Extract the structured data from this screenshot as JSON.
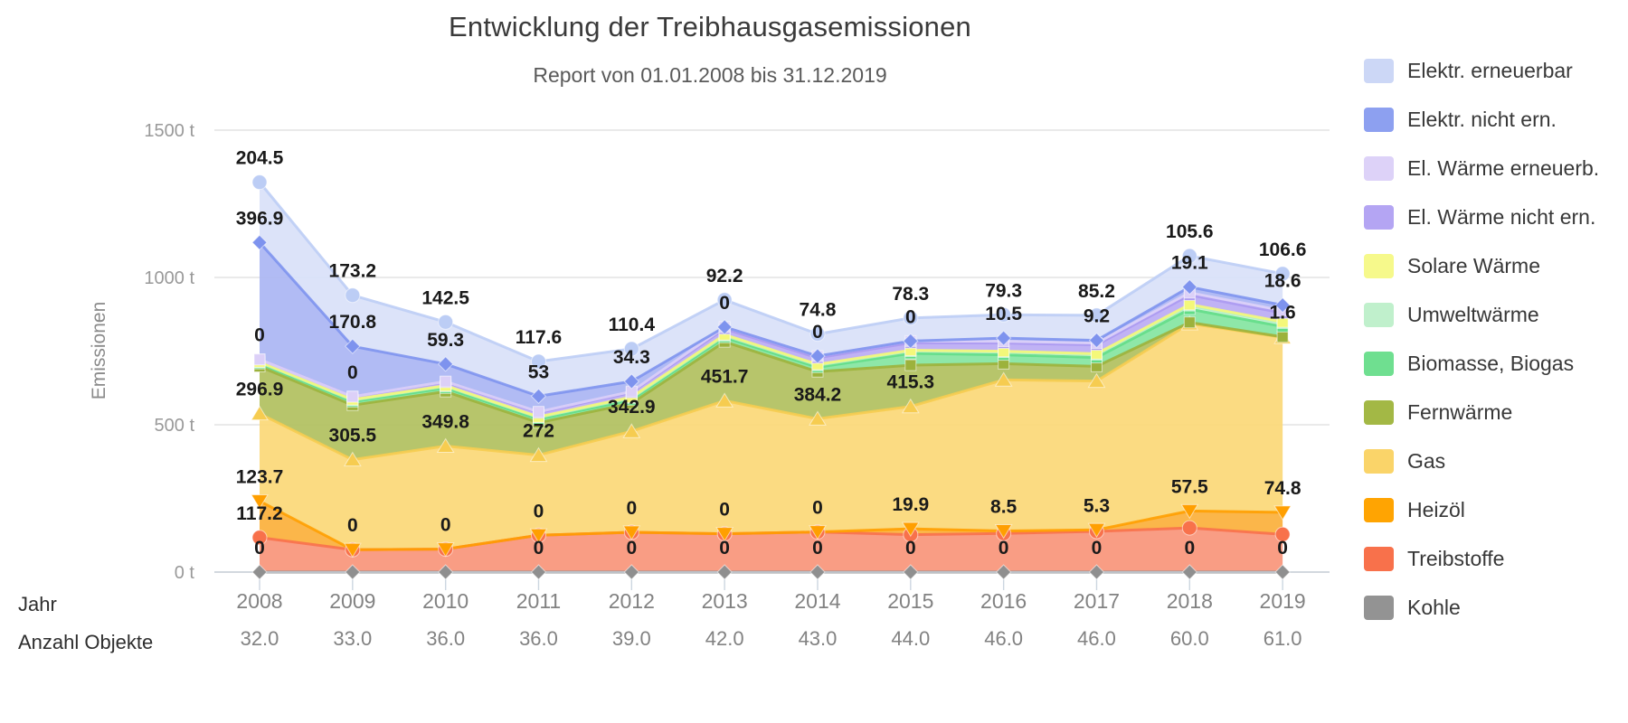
{
  "title": "Entwicklung der Treibhausgasemissionen",
  "subtitle": "Report von 01.01.2008 bis 31.12.2019",
  "axis": {
    "y_title": "Emissionen",
    "x_row1_label": "Jahr",
    "x_row2_label": "Anzahl Objekte"
  },
  "legend": {
    "items": [
      {
        "key": "elektr_e",
        "label": "Elektr. erneuerbar",
        "color": "#ccd7f6"
      },
      {
        "key": "elektr_ne",
        "label": "Elektr. nicht ern.",
        "color": "#8da0f0"
      },
      {
        "key": "elw_e",
        "label": "El. Wärme erneuerb.",
        "color": "#ddd2f8"
      },
      {
        "key": "elw_ne",
        "label": "El. Wärme nicht ern.",
        "color": "#b4a5f3"
      },
      {
        "key": "solare",
        "label": "Solare Wärme",
        "color": "#f6f98b"
      },
      {
        "key": "umweltwaerme",
        "label": "Umweltwärme",
        "color": "#c0f0cc"
      },
      {
        "key": "biomasse",
        "label": "Biomasse, Biogas",
        "color": "#6fdf90"
      },
      {
        "key": "fernwaerme",
        "label": "Fernwärme",
        "color": "#a3b845"
      },
      {
        "key": "gas",
        "label": "Gas",
        "color": "#fad469"
      },
      {
        "key": "heizoel",
        "label": "Heizöl",
        "color": "#ffa402"
      },
      {
        "key": "treibstoffe",
        "label": "Treibstoffe",
        "color": "#f8714b"
      },
      {
        "key": "kohle",
        "label": "Kohle",
        "color": "#939393"
      }
    ]
  },
  "chart_data": {
    "type": "area",
    "stacking": "normal",
    "grid": true,
    "legend_position": "right",
    "y_unit": "t",
    "ylim": [
      0,
      1500
    ],
    "y_ticks": [
      {
        "value": 0,
        "label": "0 t"
      },
      {
        "value": 500,
        "label": "500 t"
      },
      {
        "value": 1000,
        "label": "1000 t"
      },
      {
        "value": 1500,
        "label": "1500 t"
      }
    ],
    "x": [
      2008,
      2009,
      2010,
      2011,
      2012,
      2013,
      2014,
      2015,
      2016,
      2017,
      2018,
      2019
    ],
    "anzahl_objekte": [
      "32.0",
      "33.0",
      "36.0",
      "36.0",
      "39.0",
      "42.0",
      "43.0",
      "44.0",
      "46.0",
      "46.0",
      "60.0",
      "61.0"
    ],
    "series_note": "Series listed bottom-to-top of the stack. Values backing a visible point label are exact; all other values are visual estimates read from the pixel geometry.",
    "series": [
      {
        "key": "kohle",
        "name": "Kohle",
        "color": "#8f8f8f",
        "area_color": "#a8a8a8",
        "marker": "diamond",
        "values": [
          0,
          0,
          0,
          0,
          0,
          0,
          0,
          0,
          0,
          0,
          0,
          0
        ]
      },
      {
        "key": "treibstoffe",
        "name": "Treibstoffe",
        "color": "#f8714b",
        "area_color": "#f9967b",
        "marker": "circle",
        "values": [
          117.2,
          76,
          78,
          125,
          135,
          130,
          136,
          127,
          131,
          138,
          150,
          128
        ]
      },
      {
        "key": "heizoel",
        "name": "Heizöl",
        "color": "#ff9f00",
        "area_color": "#fbb03c",
        "marker": "triangle-down",
        "values": [
          123.7,
          0,
          0,
          0,
          0,
          0,
          0,
          19.9,
          8.5,
          5.3,
          57.5,
          74.8
        ]
      },
      {
        "key": "gas",
        "name": "Gas",
        "color": "#f6cc50",
        "area_color": "#fbd878",
        "marker": "triangle-up",
        "values": [
          296.9,
          305.5,
          349.8,
          272,
          342.9,
          451.7,
          384.2,
          415.3,
          513,
          505,
          636,
          594
        ]
      },
      {
        "key": "fernwaerme",
        "name": "Fernwärme",
        "color": "#9cb23c",
        "area_color": "#b2c160",
        "marker": "square",
        "values": [
          160,
          185,
          185,
          110,
          95,
          200,
          160,
          140,
          55,
          50,
          4,
          1.6
        ]
      },
      {
        "key": "biomasse",
        "name": "Biomasse, Biogas",
        "color": "#62dd87",
        "area_color": "#85e5a1",
        "marker": "square",
        "values": [
          10,
          12,
          12,
          12,
          12,
          15,
          15,
          40,
          30,
          30,
          45,
          35
        ]
      },
      {
        "key": "umweltwaerme",
        "name": "Umweltwärme",
        "color": "#b5efc4",
        "area_color": "#c9f2d3",
        "marker": "square",
        "values": [
          4,
          5,
          6,
          6,
          6,
          6,
          7,
          8,
          9,
          10,
          12,
          12
        ]
      },
      {
        "key": "solare",
        "name": "Solare Wärme",
        "color": "#f4f87a",
        "area_color": "#f7f9a8",
        "marker": "square",
        "values": [
          2,
          2,
          2,
          2,
          3,
          3,
          3,
          3,
          3,
          3,
          4,
          4
        ]
      },
      {
        "key": "elw_ne",
        "name": "El. Wärme nicht ern.",
        "color": "#ab99f1",
        "area_color": "#bbacf4",
        "marker": "square",
        "values": [
          8,
          10,
          12,
          14,
          16,
          20,
          22,
          25,
          28,
          30,
          32,
          30
        ]
      },
      {
        "key": "elw_e",
        "name": "El. Wärme erneuerb.",
        "color": "#dcd0f8",
        "area_color": "#ded3f9",
        "marker": "square",
        "values": [
          0,
          0,
          2,
          3,
          3,
          6,
          6,
          6,
          6,
          6,
          8,
          8
        ]
      },
      {
        "key": "elektr_ne",
        "name": "Elektr. nicht ern.",
        "color": "#7e93ee",
        "area_color": "#abb6f3",
        "marker": "diamond",
        "values": [
          396.9,
          170.8,
          59.3,
          53,
          34.3,
          0,
          0,
          0,
          10.5,
          9.2,
          19.1,
          18.6
        ]
      },
      {
        "key": "elektr_e",
        "name": "Elektr. erneuerbar",
        "color": "#bccdf5",
        "area_color": "#d9e1f9",
        "marker": "circle",
        "values": [
          204.5,
          173.2,
          142.5,
          117.6,
          110.4,
          92.2,
          74.8,
          78.3,
          79.3,
          85.2,
          105.6,
          106.6
        ]
      }
    ],
    "point_labels": [
      {
        "year": 2008,
        "series": "elektr_e",
        "text": "204.5"
      },
      {
        "year": 2008,
        "series": "elektr_ne",
        "text": "396.9"
      },
      {
        "year": 2008,
        "series": "elw_e",
        "text": "0"
      },
      {
        "year": 2008,
        "series": "gas",
        "text": "296.9"
      },
      {
        "year": 2008,
        "series": "heizoel",
        "text": "123.7"
      },
      {
        "year": 2008,
        "series": "treibstoffe",
        "text": "117.2"
      },
      {
        "year": 2008,
        "series": "kohle",
        "text": "0"
      },
      {
        "year": 2009,
        "series": "elektr_e",
        "text": "173.2"
      },
      {
        "year": 2009,
        "series": "elektr_ne",
        "text": "170.8"
      },
      {
        "year": 2009,
        "series": "elw_e",
        "text": "0"
      },
      {
        "year": 2009,
        "series": "gas",
        "text": "305.5"
      },
      {
        "year": 2009,
        "series": "heizoel",
        "text": "0"
      },
      {
        "year": 2010,
        "series": "elektr_e",
        "text": "142.5"
      },
      {
        "year": 2010,
        "series": "elektr_ne",
        "text": "59.3"
      },
      {
        "year": 2010,
        "series": "gas",
        "text": "349.8"
      },
      {
        "year": 2010,
        "series": "heizoel",
        "text": "0"
      },
      {
        "year": 2011,
        "series": "elektr_e",
        "text": "117.6"
      },
      {
        "year": 2011,
        "series": "elektr_ne",
        "text": "53"
      },
      {
        "year": 2011,
        "series": "gas",
        "text": "272"
      },
      {
        "year": 2011,
        "series": "heizoel",
        "text": "0"
      },
      {
        "year": 2011,
        "series": "kohle",
        "text": "0"
      },
      {
        "year": 2012,
        "series": "elektr_e",
        "text": "110.4"
      },
      {
        "year": 2012,
        "series": "elektr_ne",
        "text": "34.3"
      },
      {
        "year": 2012,
        "series": "gas",
        "text": "342.9"
      },
      {
        "year": 2012,
        "series": "heizoel",
        "text": "0"
      },
      {
        "year": 2012,
        "series": "kohle",
        "text": "0"
      },
      {
        "year": 2013,
        "series": "elektr_e",
        "text": "92.2"
      },
      {
        "year": 2013,
        "series": "elektr_ne",
        "text": "0"
      },
      {
        "year": 2013,
        "series": "gas",
        "text": "451.7"
      },
      {
        "year": 2013,
        "series": "heizoel",
        "text": "0"
      },
      {
        "year": 2013,
        "series": "kohle",
        "text": "0"
      },
      {
        "year": 2014,
        "series": "elektr_e",
        "text": "74.8"
      },
      {
        "year": 2014,
        "series": "elektr_ne",
        "text": "0"
      },
      {
        "year": 2014,
        "series": "gas",
        "text": "384.2"
      },
      {
        "year": 2014,
        "series": "heizoel",
        "text": "0"
      },
      {
        "year": 2014,
        "series": "kohle",
        "text": "0"
      },
      {
        "year": 2015,
        "series": "elektr_e",
        "text": "78.3"
      },
      {
        "year": 2015,
        "series": "elektr_ne",
        "text": "0"
      },
      {
        "year": 2015,
        "series": "gas",
        "text": "415.3"
      },
      {
        "year": 2015,
        "series": "heizoel",
        "text": "19.9"
      },
      {
        "year": 2015,
        "series": "kohle",
        "text": "0"
      },
      {
        "year": 2016,
        "series": "elektr_e",
        "text": "79.3"
      },
      {
        "year": 2016,
        "series": "elektr_ne",
        "text": "10.5"
      },
      {
        "year": 2016,
        "series": "heizoel",
        "text": "8.5"
      },
      {
        "year": 2016,
        "series": "kohle",
        "text": "0"
      },
      {
        "year": 2017,
        "series": "elektr_e",
        "text": "85.2"
      },
      {
        "year": 2017,
        "series": "elektr_ne",
        "text": "9.2"
      },
      {
        "year": 2017,
        "series": "heizoel",
        "text": "5.3"
      },
      {
        "year": 2017,
        "series": "kohle",
        "text": "0"
      },
      {
        "year": 2018,
        "series": "elektr_e",
        "text": "105.6"
      },
      {
        "year": 2018,
        "series": "elektr_ne",
        "text": "19.1"
      },
      {
        "year": 2018,
        "series": "heizoel",
        "text": "57.5"
      },
      {
        "year": 2018,
        "series": "kohle",
        "text": "0"
      },
      {
        "year": 2019,
        "series": "elektr_e",
        "text": "106.6"
      },
      {
        "year": 2019,
        "series": "elektr_ne",
        "text": "18.6"
      },
      {
        "year": 2019,
        "series": "fernwaerme",
        "text": "1.6"
      },
      {
        "year": 2019,
        "series": "heizoel",
        "text": "74.8"
      },
      {
        "year": 2019,
        "series": "kohle",
        "text": "0"
      }
    ]
  }
}
